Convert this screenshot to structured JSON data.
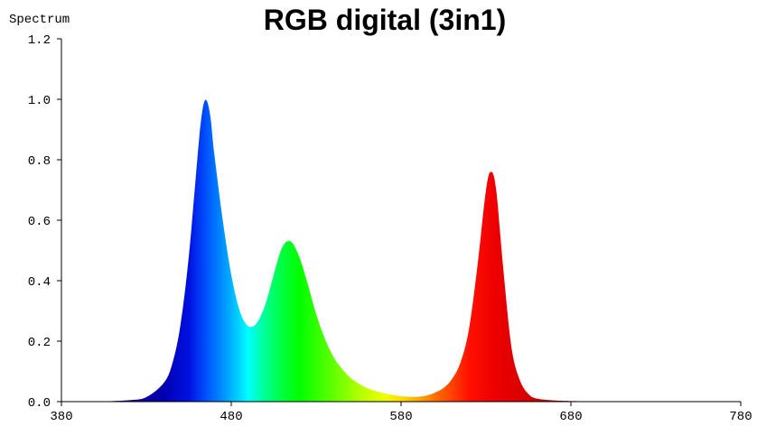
{
  "chart_data": {
    "type": "area",
    "title": "RGB digital (3in1)",
    "ylabel": "Spectrum",
    "xlabel": "",
    "xlim": [
      380,
      780
    ],
    "ylim": [
      0,
      1.2
    ],
    "x_ticks": [
      "380",
      "480",
      "580",
      "680",
      "780"
    ],
    "y_ticks": [
      "0.0",
      "0.2",
      "0.4",
      "0.6",
      "0.8",
      "1.0",
      "1.2"
    ],
    "fill": "wavelength spectrum gradient",
    "series": [
      {
        "x": [
          380,
          400,
          420,
          430,
          440,
          445,
          450,
          455,
          460,
          462,
          464,
          466,
          468,
          470,
          475,
          480,
          485,
          490,
          495,
          500,
          505,
          510,
          515,
          520,
          525,
          530,
          535,
          540,
          545,
          550,
          555,
          560,
          565,
          570,
          575,
          580,
          585,
          590,
          595,
          600,
          605,
          610,
          615,
          620,
          625,
          630,
          633,
          636,
          640,
          645,
          650,
          655,
          660,
          670,
          680,
          700,
          740,
          780
        ],
        "values": [
          0.0,
          0.0,
          0.005,
          0.015,
          0.06,
          0.12,
          0.25,
          0.48,
          0.8,
          0.92,
          0.99,
          0.99,
          0.93,
          0.82,
          0.6,
          0.42,
          0.3,
          0.25,
          0.26,
          0.32,
          0.42,
          0.51,
          0.53,
          0.48,
          0.39,
          0.29,
          0.21,
          0.15,
          0.11,
          0.08,
          0.06,
          0.045,
          0.035,
          0.028,
          0.022,
          0.018,
          0.016,
          0.016,
          0.02,
          0.03,
          0.045,
          0.075,
          0.13,
          0.24,
          0.45,
          0.7,
          0.76,
          0.7,
          0.45,
          0.18,
          0.07,
          0.025,
          0.01,
          0.004,
          0.002,
          0.0,
          0.0,
          0.0
        ]
      }
    ]
  }
}
